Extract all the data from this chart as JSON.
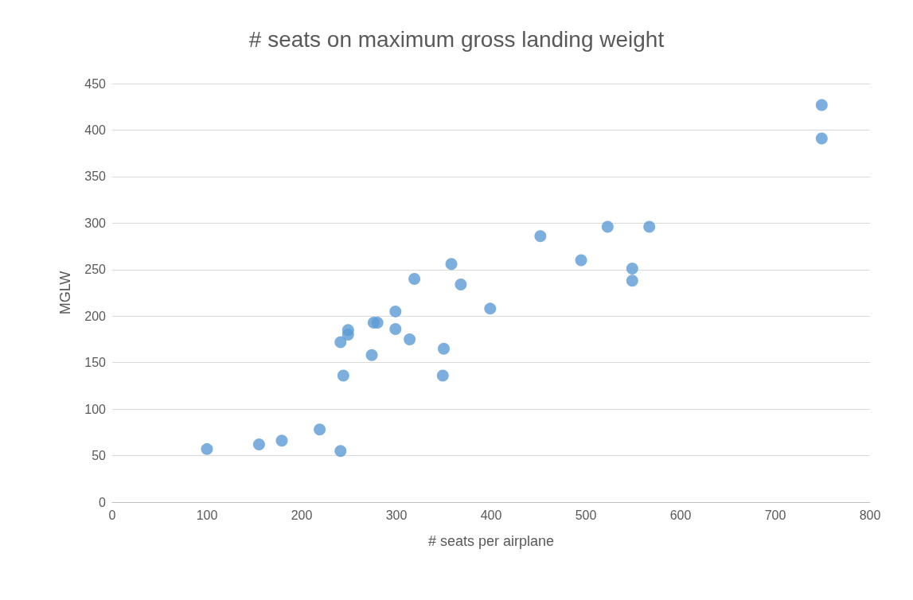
{
  "chart_data": {
    "type": "scatter",
    "title": "# seats on maximum gross landing weight",
    "xlabel": "# seats per airplane",
    "ylabel": "MGLW",
    "x": [
      100,
      155,
      179,
      219,
      241,
      241,
      244,
      249,
      249,
      274,
      276,
      280,
      299,
      299,
      314,
      319,
      349,
      350,
      358,
      368,
      399,
      452,
      495,
      523,
      549,
      549,
      567,
      749,
      749
    ],
    "series": [
      {
        "color": "#5b9bd5",
        "values": [
          57,
          62,
          66,
          78,
          55,
          172,
          136,
          185,
          180,
          158,
          193,
          193,
          205,
          186,
          175,
          240,
          136,
          165,
          256,
          234,
          208,
          286,
          260,
          296,
          251,
          238,
          296,
          427,
          391
        ]
      }
    ],
    "xlim": [
      0,
      800
    ],
    "xticks": [
      0,
      100,
      200,
      300,
      400,
      500,
      600,
      700,
      800
    ],
    "ylim": [
      0,
      450
    ],
    "yticks": [
      0,
      50,
      100,
      150,
      200,
      250,
      300,
      350,
      400,
      450
    ],
    "grid": "y",
    "marker": "circle"
  }
}
